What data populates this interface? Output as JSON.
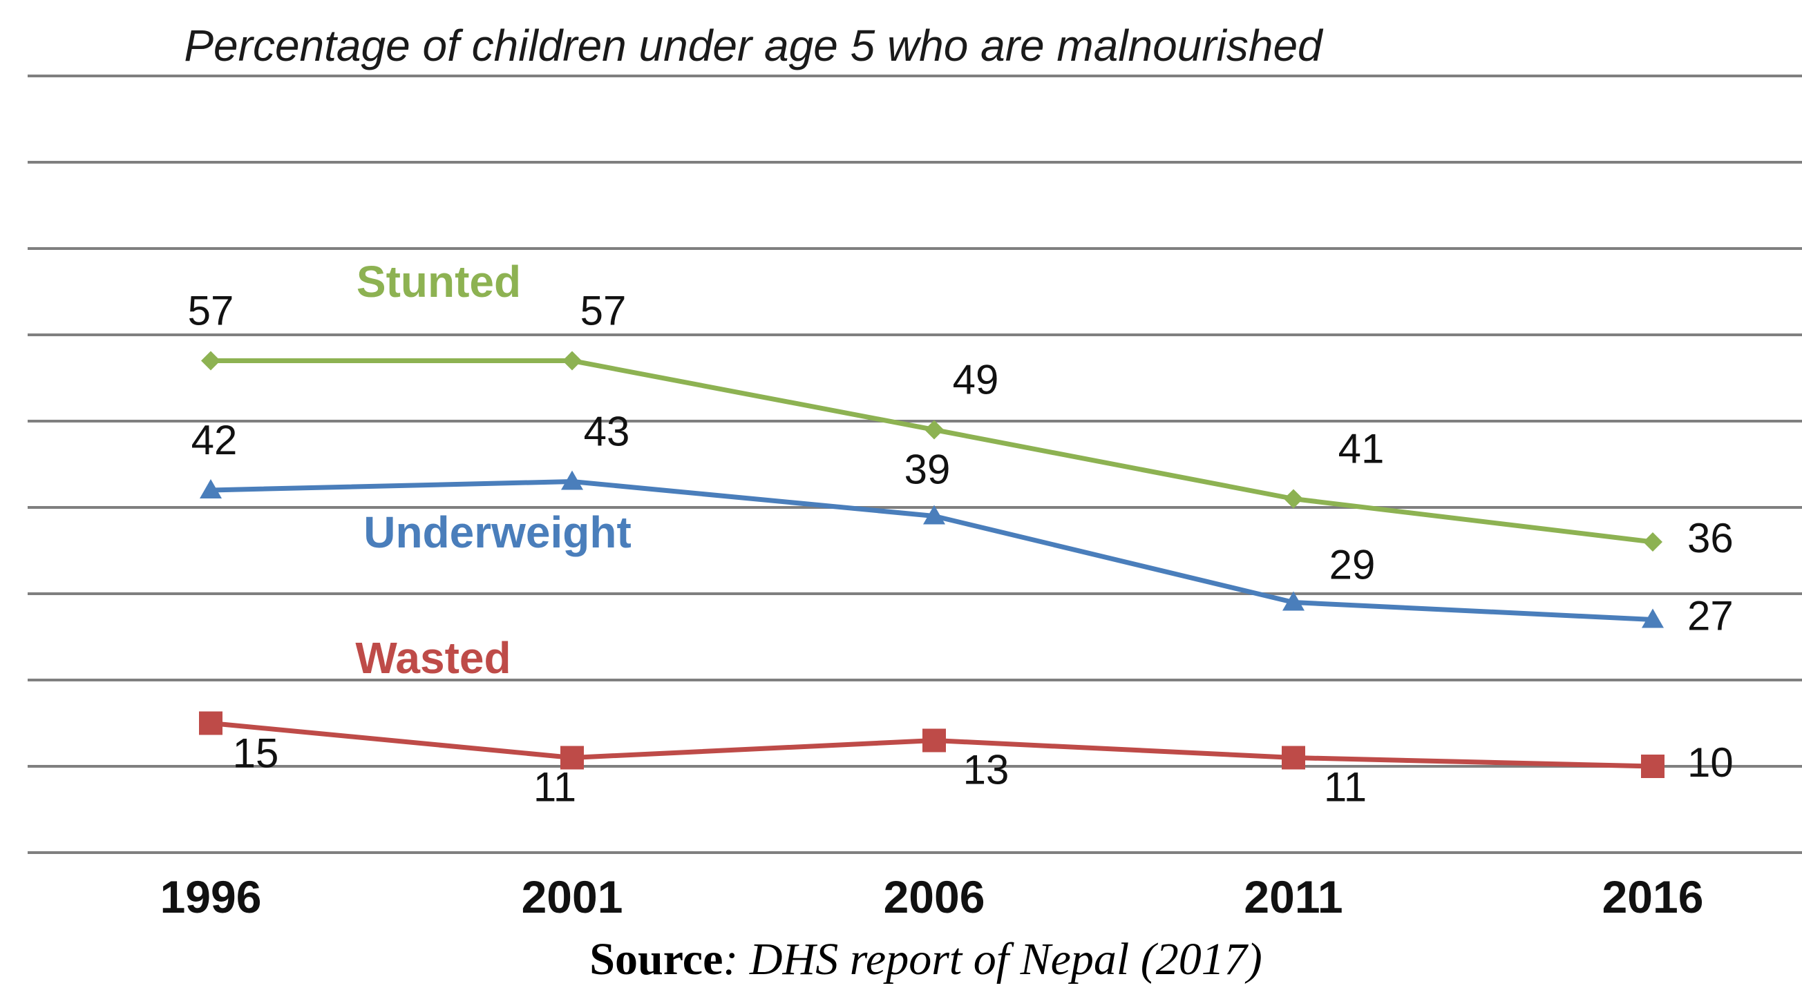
{
  "chart_data": {
    "type": "line",
    "title": "Percentage of children under age 5 who are malnourished",
    "categories": [
      "1996",
      "2001",
      "2006",
      "2011",
      "2016"
    ],
    "series": [
      {
        "name": "Stunted",
        "values": [
          57,
          57,
          49,
          41,
          36
        ],
        "color": "#8db252",
        "marker": "diamond"
      },
      {
        "name": "Underweight",
        "values": [
          42,
          43,
          39,
          29,
          27
        ],
        "color": "#4a7ebb",
        "marker": "triangle"
      },
      {
        "name": "Wasted",
        "values": [
          15,
          11,
          13,
          11,
          10
        ],
        "color": "#be4b48",
        "marker": "square"
      }
    ],
    "ylim": [
      0,
      80
    ],
    "grid": true,
    "legend": "inline labels",
    "xlabel": "",
    "ylabel": ""
  },
  "source": {
    "label": "Source",
    "text": ": DHS report of Nepal (2017)"
  }
}
